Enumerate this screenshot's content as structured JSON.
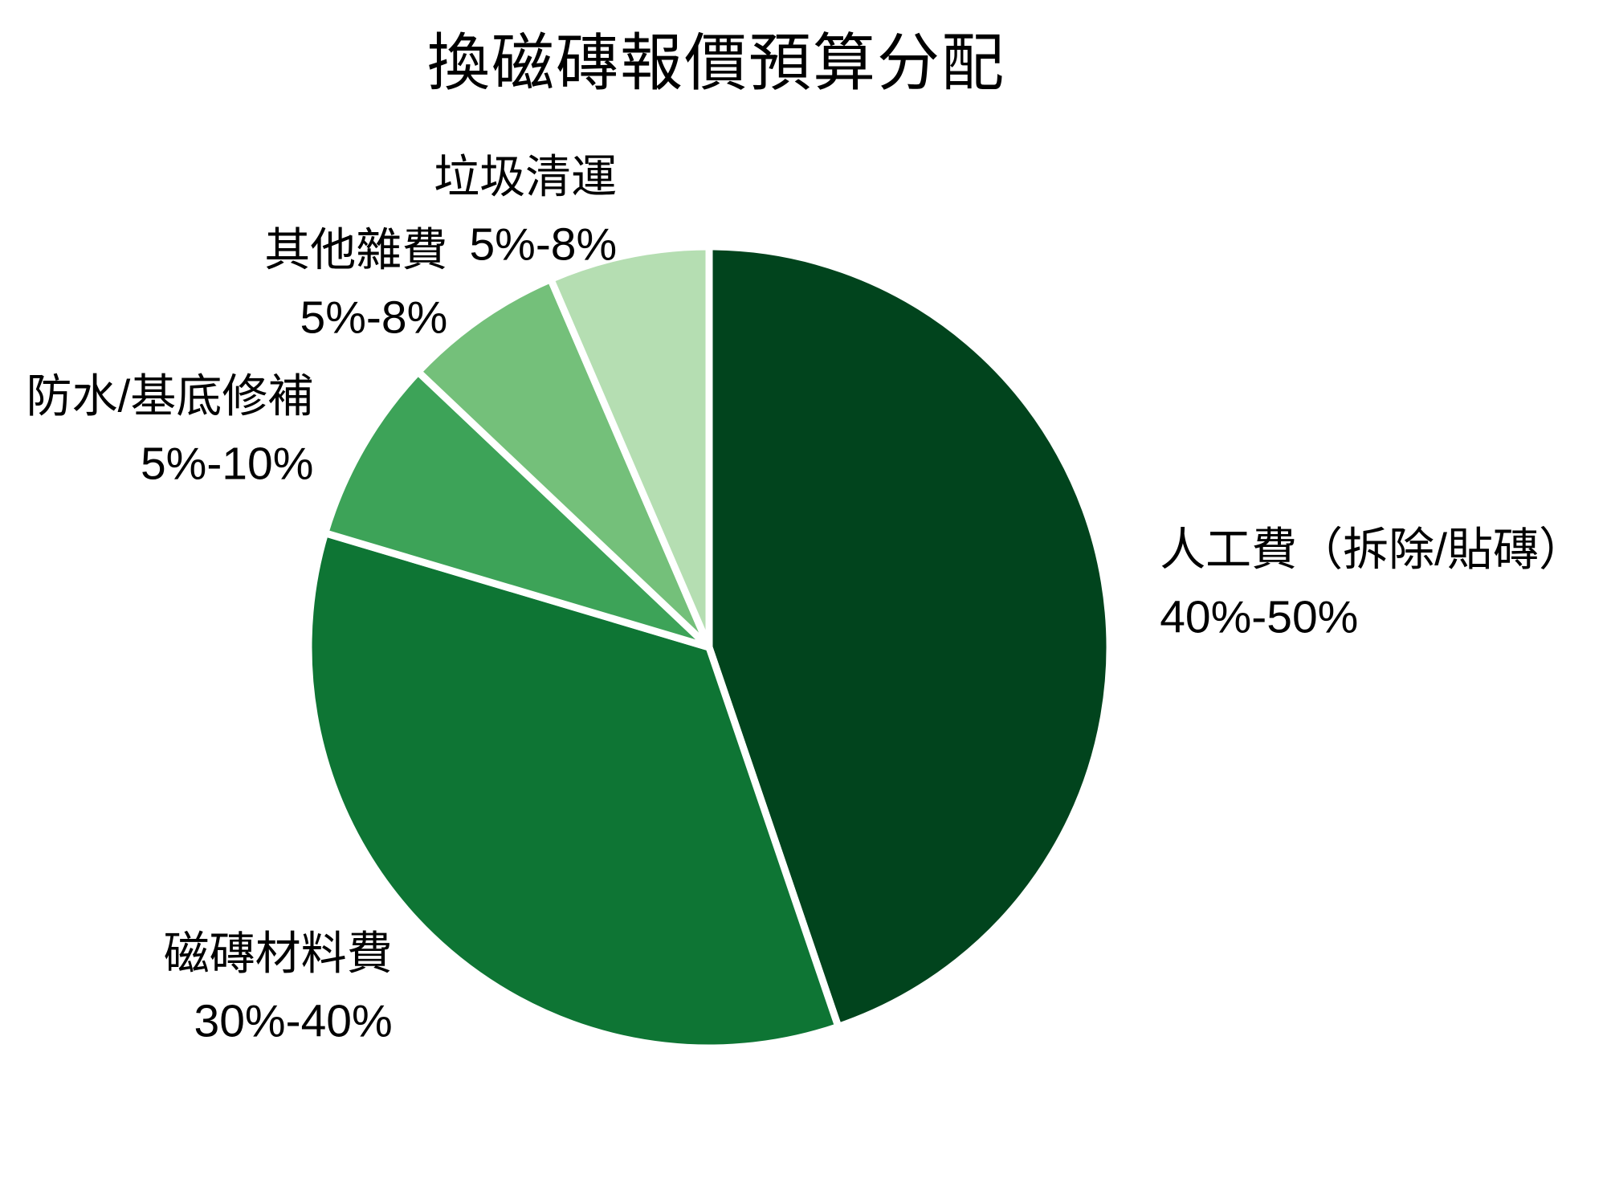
{
  "chart_data": {
    "type": "pie",
    "title": "換磁磚報價預算分配",
    "start_angle_deg": 0,
    "direction": "clockwise",
    "labels_position": "outside-end",
    "legend": "none",
    "background": "#ffffff",
    "text_color": "#000000",
    "slice_border_color": "#ffffff",
    "slices": [
      {
        "label": "人工費（拆除/貼磚）",
        "range_label": "40%-50%",
        "plotted_share_pct": 45,
        "color": "#01441d"
      },
      {
        "label": "磁磚材料費",
        "range_label": "30%-40%",
        "plotted_share_pct": 35,
        "color": "#0e7534"
      },
      {
        "label": "防水/基底修補",
        "range_label": "5%-10%",
        "plotted_share_pct": 7.5,
        "color": "#3da358"
      },
      {
        "label": "其他雜費",
        "range_label": "5%-8%",
        "plotted_share_pct": 6.5,
        "color": "#74c07a"
      },
      {
        "label": "垃圾清運",
        "range_label": "5%-8%",
        "plotted_share_pct": 6.5,
        "color": "#b5deb2"
      }
    ]
  }
}
